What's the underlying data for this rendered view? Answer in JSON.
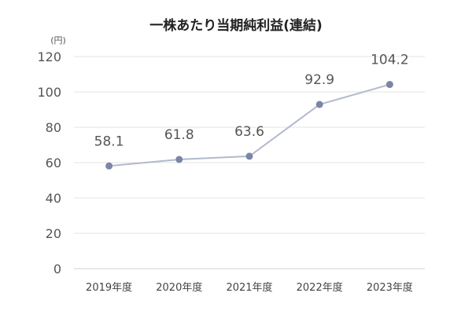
{
  "chart_data": {
    "type": "line",
    "title": "一株あたり当期純利益(連結)",
    "yunit": "(円)",
    "categories": [
      "2019年度",
      "2020年度",
      "2021年度",
      "2022年度",
      "2023年度"
    ],
    "series": [
      {
        "values": [
          58.1,
          61.8,
          63.6,
          92.9,
          104.2
        ]
      }
    ],
    "data_labels": [
      "58.1",
      "61.8",
      "63.6",
      "92.9",
      "104.2"
    ],
    "ylim": [
      0,
      120
    ],
    "yticks": [
      0,
      20,
      40,
      60,
      80,
      100,
      120
    ],
    "grid": true,
    "colors": {
      "line": "#b3b9cd",
      "marker": "#7c85a8",
      "grid": "#e3e3e3"
    }
  }
}
